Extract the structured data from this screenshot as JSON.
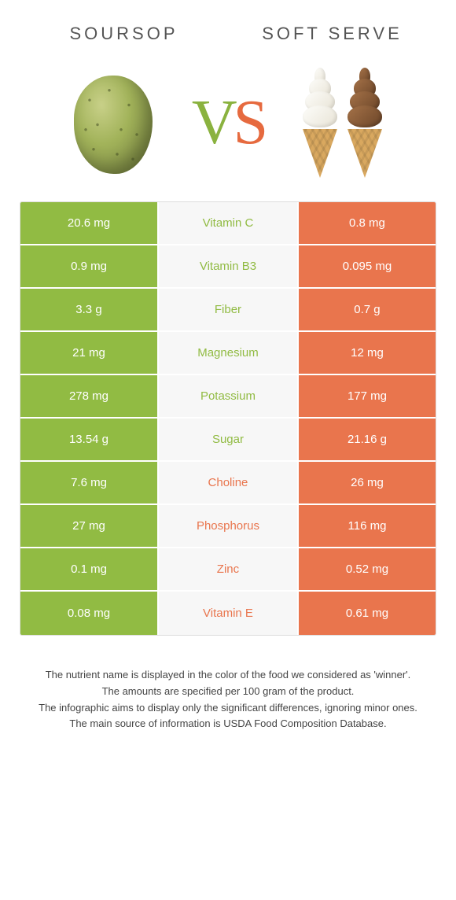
{
  "colors": {
    "left": "#91bb43",
    "right": "#e9754d",
    "mid_bg": "#f7f7f7"
  },
  "header": {
    "left_title": "SOURSOP",
    "right_title": "Soft serve"
  },
  "vs": {
    "v": "V",
    "s": "S"
  },
  "rows": [
    {
      "nutrient": "Vitamin C",
      "left": "20.6 mg",
      "right": "0.8 mg",
      "winner": "left"
    },
    {
      "nutrient": "Vitamin B3",
      "left": "0.9 mg",
      "right": "0.095 mg",
      "winner": "left"
    },
    {
      "nutrient": "Fiber",
      "left": "3.3 g",
      "right": "0.7 g",
      "winner": "left"
    },
    {
      "nutrient": "Magnesium",
      "left": "21 mg",
      "right": "12 mg",
      "winner": "left"
    },
    {
      "nutrient": "Potassium",
      "left": "278 mg",
      "right": "177 mg",
      "winner": "left"
    },
    {
      "nutrient": "Sugar",
      "left": "13.54 g",
      "right": "21.16 g",
      "winner": "left"
    },
    {
      "nutrient": "Choline",
      "left": "7.6 mg",
      "right": "26 mg",
      "winner": "right"
    },
    {
      "nutrient": "Phosphorus",
      "left": "27 mg",
      "right": "116 mg",
      "winner": "right"
    },
    {
      "nutrient": "Zinc",
      "left": "0.1 mg",
      "right": "0.52 mg",
      "winner": "right"
    },
    {
      "nutrient": "Vitamin E",
      "left": "0.08 mg",
      "right": "0.61 mg",
      "winner": "right"
    }
  ],
  "footer": {
    "line1": "The nutrient name is displayed in the color of the food we considered as 'winner'.",
    "line2": "The amounts are specified per 100 gram of the product.",
    "line3": "The infographic aims to display only the significant differences, ignoring minor ones.",
    "line4": "The main source of information is USDA Food Composition Database."
  }
}
